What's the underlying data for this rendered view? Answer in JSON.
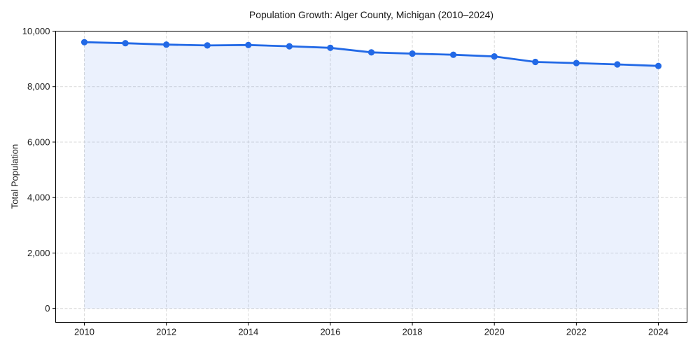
{
  "chart_data": {
    "type": "line",
    "title": "Population Growth: Alger County, Michigan (2010–2024)",
    "xlabel": "",
    "ylabel": "Total Population",
    "x": [
      2010,
      2011,
      2012,
      2013,
      2014,
      2015,
      2016,
      2017,
      2018,
      2019,
      2020,
      2021,
      2022,
      2023,
      2024
    ],
    "series": [
      {
        "name": "Total Population",
        "values": [
          9600,
          9565,
          9515,
          9485,
          9500,
          9455,
          9400,
          9235,
          9190,
          9150,
          9090,
          8890,
          8850,
          8800,
          8745
        ]
      }
    ],
    "xlim": [
      2009.3,
      2024.7
    ],
    "ylim": [
      -500,
      10000
    ],
    "xticks": [
      2010,
      2012,
      2014,
      2016,
      2018,
      2020,
      2022,
      2024
    ],
    "xtick_labels": [
      "2010",
      "2012",
      "2014",
      "2016",
      "2018",
      "2020",
      "2022",
      "2024"
    ],
    "yticks": [
      0,
      2000,
      4000,
      6000,
      8000,
      10000
    ],
    "ytick_labels": [
      "0",
      "2,000",
      "4,000",
      "6,000",
      "8,000",
      "10,000"
    ],
    "grid": true,
    "grid_style": "dashed",
    "legend": false,
    "area_fill": true,
    "marker": "circle",
    "marker_radius": 4.6,
    "line_width": 2.8,
    "colors": {
      "line": "#2269e6",
      "fill": "#2269e6",
      "fill_opacity": 0.09,
      "grid": "#d9d9d9",
      "spine": "#000000",
      "text": "#1a1a1a",
      "background": "#ffffff"
    }
  }
}
